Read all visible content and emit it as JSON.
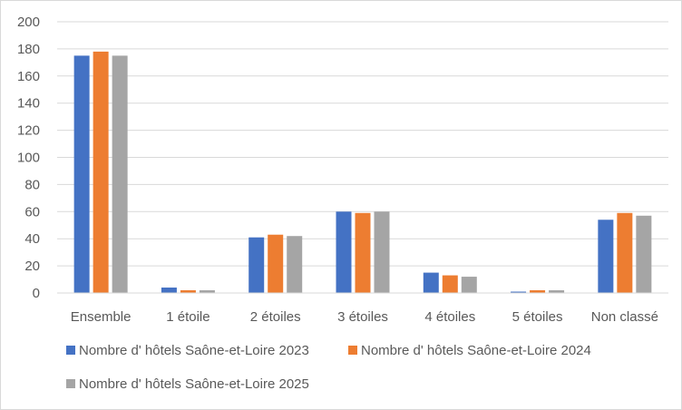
{
  "chart_data": {
    "type": "bar",
    "title": "",
    "xlabel": "",
    "ylabel": "",
    "categories": [
      "Ensemble",
      "1 étoile",
      "2 étoiles",
      "3 étoiles",
      "4 étoiles",
      "5 étoiles",
      "Non classé"
    ],
    "ylim": [
      0,
      200
    ],
    "yticks": [
      0,
      20,
      40,
      60,
      80,
      100,
      120,
      140,
      160,
      180,
      200
    ],
    "grid": true,
    "legend_position": "bottom",
    "series": [
      {
        "name": "Nombre d' hôtels Saône-et-Loire 2023",
        "color": "#4472C4",
        "values": [
          175,
          4,
          41,
          60,
          15,
          1,
          54
        ]
      },
      {
        "name": "Nombre d' hôtels Saône-et-Loire 2024",
        "color": "#ED7D31",
        "values": [
          178,
          2,
          43,
          59,
          13,
          2,
          59
        ]
      },
      {
        "name": "Nombre d' hôtels Saône-et-Loire 2025",
        "color": "#A5A5A5",
        "values": [
          175,
          2,
          42,
          60,
          12,
          2,
          57
        ]
      }
    ]
  }
}
